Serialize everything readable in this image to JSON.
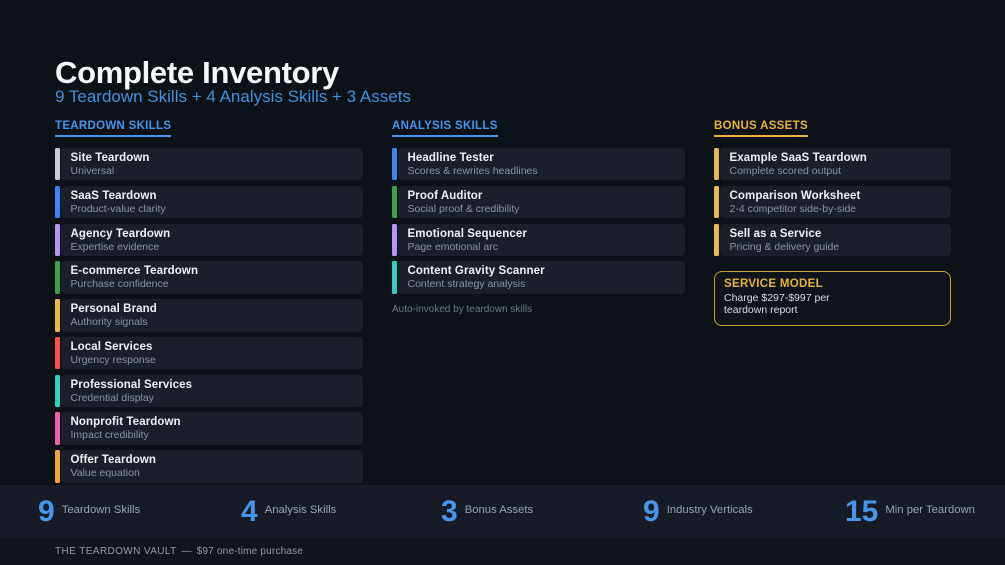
{
  "title": "Complete Inventory",
  "subtitle": "9 Teardown Skills + 4 Analysis Skills + 3 Assets",
  "colors": {
    "background": "#0d1118",
    "card_background": "#1a1f2a",
    "accent_blue": "#4590dd",
    "accent_gold": "#e7b33e",
    "stat_number_blue": "#4796ec"
  },
  "columns": [
    {
      "heading": "TEARDOWN SKILLS",
      "accent": "#4796ec",
      "items": [
        {
          "title": "Site Teardown",
          "desc": "Universal",
          "bar": "#c8cdd5"
        },
        {
          "title": "SaaS Teardown",
          "desc": "Product-value clarity",
          "bar": "#3d85ee"
        },
        {
          "title": "Agency Teardown",
          "desc": "Expertise evidence",
          "bar": "#b794f6"
        },
        {
          "title": "E-commerce Teardown",
          "desc": "Purchase confidence",
          "bar": "#3aa24a"
        },
        {
          "title": "Personal Brand",
          "desc": "Authority signals",
          "bar": "#e9b949"
        },
        {
          "title": "Local Services",
          "desc": "Urgency response",
          "bar": "#f25449"
        },
        {
          "title": "Professional Services",
          "desc": "Credential display",
          "bar": "#32d0bd"
        },
        {
          "title": "Nonprofit Teardown",
          "desc": "Impact credibility",
          "bar": "#ee5fa7"
        },
        {
          "title": "Offer Teardown",
          "desc": "Value equation",
          "bar": "#f2a344"
        }
      ]
    },
    {
      "heading": "ANALYSIS SKILLS",
      "accent": "#4796ec",
      "items": [
        {
          "title": "Headline Tester",
          "desc": "Scores & rewrites headlines",
          "bar": "#3d85ee"
        },
        {
          "title": "Proof Auditor",
          "desc": "Social proof & credibility",
          "bar": "#3aa24a"
        },
        {
          "title": "Emotional Sequencer",
          "desc": "Page emotional arc",
          "bar": "#b794f6"
        },
        {
          "title": "Content Gravity Scanner",
          "desc": "Content strategy analysis",
          "bar": "#32d0bd"
        }
      ],
      "note": "Auto-invoked by teardown skills"
    },
    {
      "heading": "BONUS ASSETS",
      "accent": "#e7b33e",
      "items": [
        {
          "title": "Example SaaS Teardown",
          "desc": "Complete scored output",
          "bar": "#e9b949"
        },
        {
          "title": "Comparison Worksheet",
          "desc": "2-4 competitor side-by-side",
          "bar": "#e9b949"
        },
        {
          "title": "Sell as a Service",
          "desc": "Pricing & delivery guide",
          "bar": "#e9b949"
        }
      ],
      "callout": {
        "title": "SERVICE MODEL",
        "body": "Charge $297-$997 per teardown report"
      }
    }
  ],
  "stats": [
    {
      "value": "9",
      "label": "Teardown Skills"
    },
    {
      "value": "4",
      "label": "Analysis Skills"
    },
    {
      "value": "3",
      "label": "Bonus Assets"
    },
    {
      "value": "9",
      "label": "Industry Verticals"
    },
    {
      "value": "15",
      "label": "Min per Teardown"
    }
  ],
  "footer": {
    "brand": "THE TEARDOWN VAULT",
    "separator": "—",
    "price": "$97 one-time purchase"
  }
}
